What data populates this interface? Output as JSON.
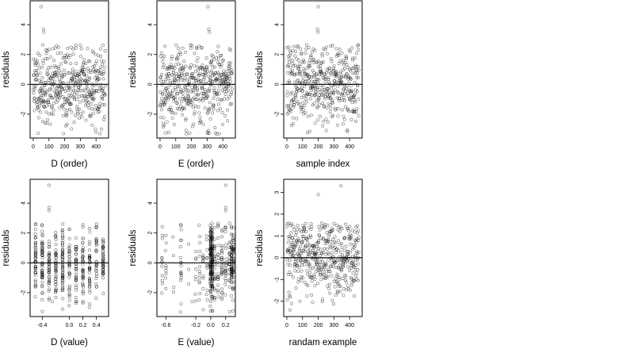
{
  "figure": {
    "background": "#ffffff",
    "point_color": "#000000",
    "ref_line_color": "#000000"
  },
  "chart_data": [
    {
      "type": "scatter",
      "xlabel": "D (order)",
      "ylabel": "residuals",
      "xlim": [
        -20,
        480
      ],
      "ylim": [
        -3.6,
        5.6
      ],
      "xticks": [
        0,
        100,
        200,
        300,
        400
      ],
      "yticks": [
        -2,
        0,
        2,
        4
      ],
      "reference_line_y": 0,
      "x_distribution": "order",
      "n_points": 460,
      "seed": 11,
      "sigma": 1.3,
      "outliers": [
        [
          50,
          5.2
        ],
        [
          65,
          3.7
        ],
        [
          67,
          3.5
        ],
        [
          75,
          -2.6
        ]
      ]
    },
    {
      "type": "scatter",
      "xlabel": "E (order)",
      "ylabel": "residuals",
      "xlim": [
        -20,
        480
      ],
      "ylim": [
        -3.6,
        5.6
      ],
      "xticks": [
        0,
        100,
        200,
        300,
        400
      ],
      "yticks": [
        -2,
        0,
        2,
        4
      ],
      "reference_line_y": 0,
      "x_distribution": "order",
      "n_points": 460,
      "seed": 23,
      "sigma": 1.3,
      "outliers": [
        [
          305,
          5.2
        ],
        [
          310,
          3.7
        ],
        [
          315,
          3.5
        ],
        [
          20,
          -2.6
        ]
      ]
    },
    {
      "type": "scatter",
      "xlabel": "sample index",
      "ylabel": "residuals",
      "xlim": [
        -20,
        480
      ],
      "ylim": [
        -3.6,
        5.6
      ],
      "xticks": [
        0,
        100,
        200,
        300,
        400
      ],
      "yticks": [
        -2,
        0,
        2,
        4
      ],
      "reference_line_y": 0,
      "x_distribution": "order",
      "n_points": 460,
      "seed": 37,
      "sigma": 1.3,
      "outliers": [
        [
          200,
          5.2
        ],
        [
          195,
          3.7
        ],
        [
          198,
          3.5
        ],
        [
          180,
          -2.6
        ]
      ]
    },
    {
      "type": "scatter",
      "xlabel": "D (value)",
      "ylabel": "residuals",
      "xlim": [
        -0.58,
        0.58
      ],
      "ylim": [
        -3.6,
        5.6
      ],
      "xticks": [
        -0.4,
        0.0,
        0.2,
        0.4
      ],
      "yticks": [
        -2,
        0,
        2,
        4
      ],
      "reference_line_y": 0,
      "x_distribution": "discrete",
      "x_levels": [
        -0.5,
        -0.4,
        -0.3,
        -0.2,
        -0.1,
        0.0,
        0.1,
        0.2,
        0.3,
        0.4,
        0.5
      ],
      "n_points": 460,
      "seed": 53,
      "sigma": 1.3,
      "outliers": [
        [
          -0.3,
          5.2
        ],
        [
          -0.3,
          3.7
        ],
        [
          -0.3,
          3.5
        ],
        [
          -0.25,
          -2.6
        ]
      ]
    },
    {
      "type": "scatter",
      "xlabel": "E (value)",
      "ylabel": "residuals",
      "xlim": [
        -0.72,
        0.33
      ],
      "ylim": [
        -3.6,
        5.6
      ],
      "xticks": [
        -0.6,
        -0.2,
        0.0,
        0.2
      ],
      "yticks": [
        -2,
        0,
        2,
        4
      ],
      "reference_line_y": 0,
      "x_distribution": "clustered",
      "x_levels": [
        -0.65,
        -0.6,
        -0.5,
        -0.4,
        -0.3,
        -0.2,
        -0.15,
        -0.1,
        -0.05,
        0.0,
        0.02,
        0.05,
        0.1,
        0.15,
        0.2,
        0.25,
        0.28,
        0.3
      ],
      "x_weights": [
        2,
        2,
        1,
        3,
        1,
        2,
        2,
        3,
        3,
        22,
        14,
        6,
        5,
        5,
        5,
        4,
        8,
        8
      ],
      "n_points": 460,
      "seed": 71,
      "sigma": 1.3,
      "outliers": [
        [
          0.2,
          5.2
        ],
        [
          0.2,
          3.7
        ],
        [
          0.2,
          3.5
        ],
        [
          -0.25,
          -2.6
        ]
      ]
    },
    {
      "type": "scatter",
      "xlabel": "randam example",
      "ylabel": "residuals",
      "xlim": [
        -20,
        480
      ],
      "ylim": [
        -2.7,
        3.6
      ],
      "xticks": [
        0,
        100,
        200,
        300,
        400
      ],
      "yticks": [
        -2,
        -1,
        0,
        1,
        2,
        3
      ],
      "reference_line_y": 0,
      "x_distribution": "order",
      "n_points": 460,
      "seed": 97,
      "sigma": 1.0,
      "outliers": [
        [
          345,
          3.3
        ],
        [
          200,
          2.9
        ],
        [
          20,
          -2.4
        ]
      ]
    }
  ]
}
